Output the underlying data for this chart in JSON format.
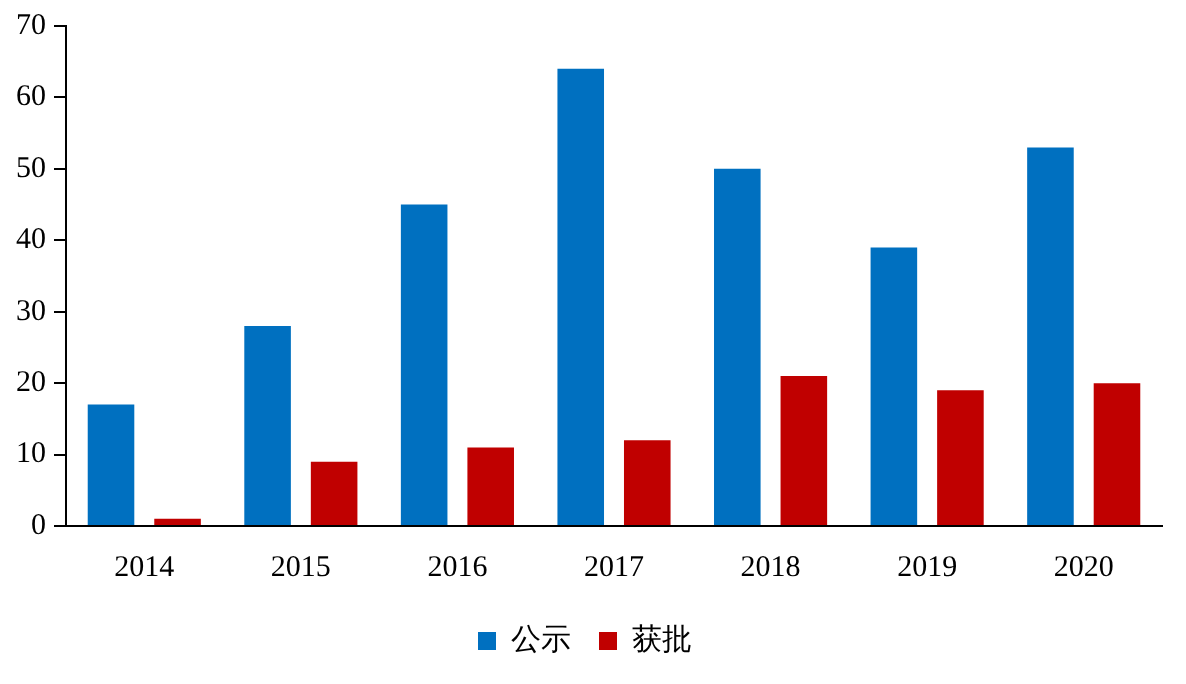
{
  "chart_data": {
    "type": "bar",
    "categories": [
      "2014",
      "2015",
      "2016",
      "2017",
      "2018",
      "2019",
      "2020"
    ],
    "series": [
      {
        "name": "公示",
        "color": "#0070c0",
        "values": [
          17,
          28,
          45,
          64,
          50,
          39,
          53
        ]
      },
      {
        "name": "获批",
        "color": "#c00000",
        "values": [
          1,
          9,
          11,
          12,
          21,
          19,
          20
        ]
      }
    ],
    "ylim": [
      0,
      70
    ],
    "yticks": [
      0,
      10,
      20,
      30,
      40,
      50,
      60,
      70
    ],
    "grid": false,
    "legend": "bottom"
  }
}
